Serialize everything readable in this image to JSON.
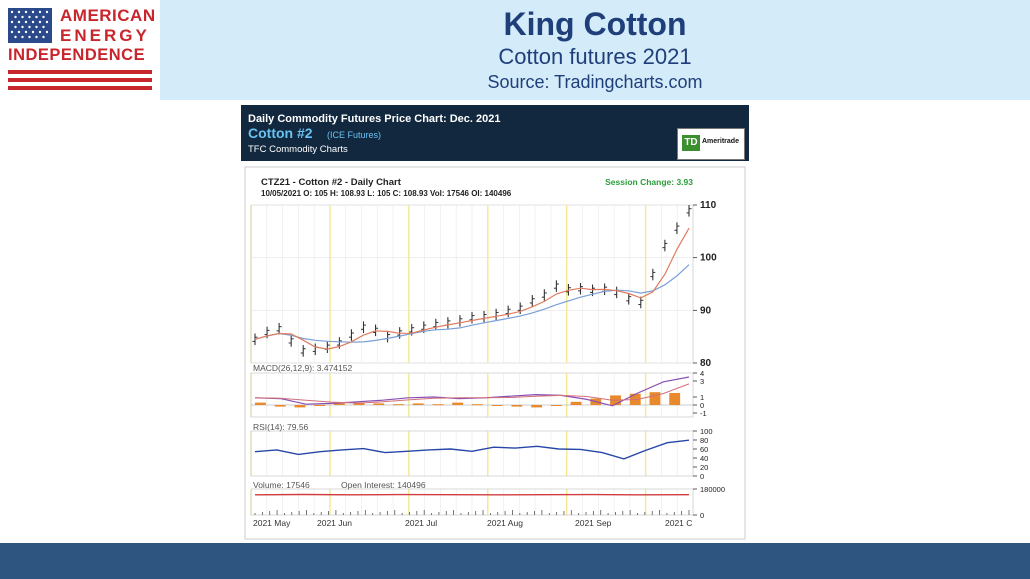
{
  "logo": {
    "line1": "AMERICAN",
    "line2": "ENERGY",
    "line3": "INDEPENDENCE"
  },
  "slide": {
    "title": "King Cotton",
    "subtitle": "Cotton futures 2021",
    "source": "Source: Tradingcharts.com"
  },
  "chart_panel": {
    "header_title": "Daily Commodity Futures Price Chart: Dec. 2021",
    "contract_name": "Cotton #2",
    "exchange": "(ICE Futures)",
    "provider": "TFC Commodity Charts",
    "sponsor_logo_text": "Ameritrade",
    "sponsor_logo_mark": "TD"
  },
  "colors": {
    "header_band": "#d4ebf9",
    "title_text": "#1f3f7a",
    "footer_band": "#2d5580",
    "logo_red": "#c9252c",
    "chart_header_bg": "#12283f",
    "contract_name": "#68c2f2",
    "price_bars": "#333333",
    "ma_short": "#e07b5f",
    "ma_long": "#7a9fd6",
    "macd_line": "#8a4fb3",
    "macd_hist": "#e8892b",
    "rsi_line": "#2747a8",
    "oi_line": "#d23c3c",
    "session_change": "#2a9e3a",
    "grid_yellow": "#f5e88e"
  },
  "chart_data": {
    "type": "line",
    "title": "CTZ21 - Cotton #2 - Daily Chart",
    "summary_line": "10/05/2021 O: 105 H: 108.93 L: 105 C: 108.93 Vol: 17546 OI: 140496",
    "session_change": "Session Change: 3.93",
    "x_tick_labels": [
      "2021 May",
      "2021 Jun",
      "2021 Jul",
      "2021 Aug",
      "2021 Sep",
      "2021 C"
    ],
    "price": {
      "ylim": [
        80,
        110
      ],
      "y_ticks": [
        "110",
        "100",
        "90",
        "80"
      ],
      "series": [
        {
          "values": [
            84.5,
            85.8,
            86.5,
            84.2,
            82.3,
            82.6,
            83.0,
            83.8,
            85.3,
            86.8,
            86.2,
            85.0,
            85.7,
            86.3,
            86.8,
            87.3,
            87.6,
            88.0,
            88.6,
            88.8,
            89.2,
            89.8,
            90.4,
            91.8,
            92.9,
            94.6,
            93.9,
            94.1,
            93.8,
            94.0,
            93.4,
            92.2,
            91.5,
            96.8,
            102.3,
            105.6,
            108.9
          ]
        }
      ]
    },
    "macd": {
      "label": "MACD(26,12,9): 3.474152",
      "y_ticks": [
        "4",
        "3",
        "1",
        "0",
        "-1"
      ],
      "ylim": [
        -1.5,
        4
      ],
      "line": [
        0.9,
        0.8,
        0.1,
        0.2,
        0.4,
        0.6,
        0.9,
        1.0,
        0.8,
        0.9,
        1.1,
        1.3,
        1.2,
        0.7,
        -0.1,
        1.5,
        2.9,
        3.5
      ],
      "histogram": [
        0.3,
        -0.2,
        -0.3,
        -0.1,
        0.2,
        0.3,
        0.2,
        0.1,
        0.2,
        0.1,
        0.3,
        0.1,
        0.0,
        -0.2,
        -0.3,
        -0.1,
        0.4,
        0.8,
        1.2,
        1.4,
        1.6,
        1.5
      ]
    },
    "rsi": {
      "label": "RSI(14): 79.56",
      "y_ticks": [
        "100",
        "80",
        "60",
        "40",
        "20",
        "0"
      ],
      "ylim": [
        0,
        100
      ],
      "values": [
        54,
        58,
        48,
        54,
        58,
        61,
        52,
        55,
        58,
        60,
        55,
        64,
        62,
        66,
        60,
        59,
        52,
        38,
        57,
        74,
        79.56
      ]
    },
    "volume_oi": {
      "volume_label": "Volume: 17546",
      "oi_label": "Open Interest: 140496",
      "y_ticks": [
        "180000",
        "0"
      ],
      "open_interest": [
        140000,
        142000,
        140000,
        141000,
        140500,
        140000,
        140500,
        141000,
        140000,
        140496
      ]
    }
  }
}
